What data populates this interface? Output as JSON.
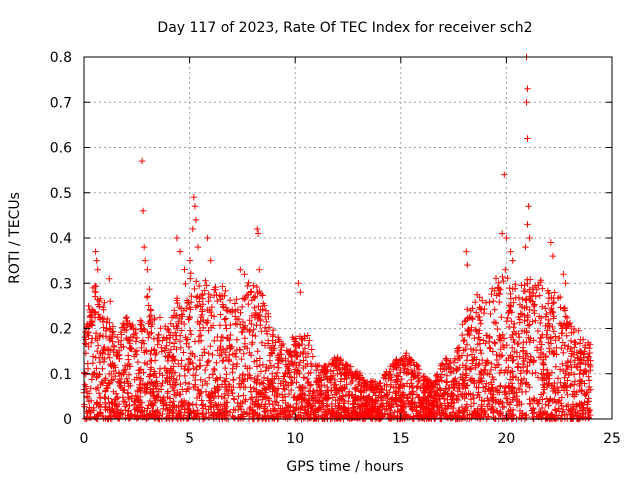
{
  "chart_data": {
    "type": "scatter",
    "title": "Day 117 of 2023, Rate Of TEC Index for receiver sch2",
    "xlabel": "GPS time / hours",
    "ylabel": "ROTI / TECUs",
    "xlim": [
      0,
      25
    ],
    "ylim": [
      0,
      0.8
    ],
    "xticks": [
      "0",
      "5",
      "10",
      "15",
      "20",
      "25"
    ],
    "yticks": [
      "0",
      "0.1",
      "0.2",
      "0.3",
      "0.4",
      "0.5",
      "0.6",
      "0.7",
      "0.8"
    ],
    "grid": true,
    "marker": "+",
    "color": "#ff0000",
    "envelope": {
      "x": [
        0,
        0.5,
        1,
        1.5,
        2,
        2.5,
        3,
        3.5,
        4,
        4.5,
        5,
        5.5,
        6,
        6.5,
        7,
        7.5,
        8,
        8.5,
        9,
        9.5,
        10,
        10.5,
        11,
        11.5,
        12,
        12.5,
        13,
        13.5,
        14,
        14.5,
        15,
        15.5,
        16,
        16.5,
        17,
        17.5,
        18,
        18.5,
        19,
        19.5,
        20,
        20.5,
        21,
        21.5,
        22,
        22.5,
        23,
        23.5,
        24
      ],
      "y": [
        0.2,
        0.32,
        0.24,
        0.18,
        0.22,
        0.2,
        0.3,
        0.22,
        0.2,
        0.3,
        0.35,
        0.3,
        0.3,
        0.3,
        0.26,
        0.28,
        0.3,
        0.26,
        0.2,
        0.16,
        0.18,
        0.2,
        0.12,
        0.12,
        0.14,
        0.12,
        0.1,
        0.08,
        0.08,
        0.12,
        0.14,
        0.14,
        0.1,
        0.08,
        0.14,
        0.12,
        0.22,
        0.26,
        0.28,
        0.3,
        0.34,
        0.3,
        0.3,
        0.3,
        0.28,
        0.28,
        0.22,
        0.18,
        0.18
      ]
    },
    "outliers": [
      {
        "x": 0.55,
        "y": 0.37
      },
      {
        "x": 0.6,
        "y": 0.35
      },
      {
        "x": 0.65,
        "y": 0.33
      },
      {
        "x": 1.2,
        "y": 0.31
      },
      {
        "x": 1.25,
        "y": 0.26
      },
      {
        "x": 2.75,
        "y": 0.57
      },
      {
        "x": 2.8,
        "y": 0.46
      },
      {
        "x": 2.85,
        "y": 0.38
      },
      {
        "x": 2.9,
        "y": 0.35
      },
      {
        "x": 3.0,
        "y": 0.33
      },
      {
        "x": 4.4,
        "y": 0.4
      },
      {
        "x": 4.55,
        "y": 0.37
      },
      {
        "x": 5.2,
        "y": 0.49
      },
      {
        "x": 5.25,
        "y": 0.47
      },
      {
        "x": 5.3,
        "y": 0.44
      },
      {
        "x": 5.15,
        "y": 0.42
      },
      {
        "x": 5.4,
        "y": 0.38
      },
      {
        "x": 5.85,
        "y": 0.4
      },
      {
        "x": 6.0,
        "y": 0.35
      },
      {
        "x": 7.4,
        "y": 0.33
      },
      {
        "x": 7.6,
        "y": 0.32
      },
      {
        "x": 8.2,
        "y": 0.42
      },
      {
        "x": 8.25,
        "y": 0.41
      },
      {
        "x": 8.3,
        "y": 0.33
      },
      {
        "x": 10.15,
        "y": 0.3
      },
      {
        "x": 10.25,
        "y": 0.28
      },
      {
        "x": 18.1,
        "y": 0.37
      },
      {
        "x": 18.15,
        "y": 0.34
      },
      {
        "x": 19.9,
        "y": 0.54
      },
      {
        "x": 19.8,
        "y": 0.41
      },
      {
        "x": 20.0,
        "y": 0.4
      },
      {
        "x": 20.2,
        "y": 0.37
      },
      {
        "x": 20.3,
        "y": 0.35
      },
      {
        "x": 20.95,
        "y": 0.8
      },
      {
        "x": 21.0,
        "y": 0.73
      },
      {
        "x": 20.95,
        "y": 0.7
      },
      {
        "x": 21.0,
        "y": 0.62
      },
      {
        "x": 21.05,
        "y": 0.47
      },
      {
        "x": 21.0,
        "y": 0.43
      },
      {
        "x": 21.1,
        "y": 0.4
      },
      {
        "x": 20.9,
        "y": 0.38
      },
      {
        "x": 22.1,
        "y": 0.39
      },
      {
        "x": 22.2,
        "y": 0.36
      },
      {
        "x": 22.7,
        "y": 0.32
      },
      {
        "x": 22.8,
        "y": 0.3
      }
    ]
  }
}
